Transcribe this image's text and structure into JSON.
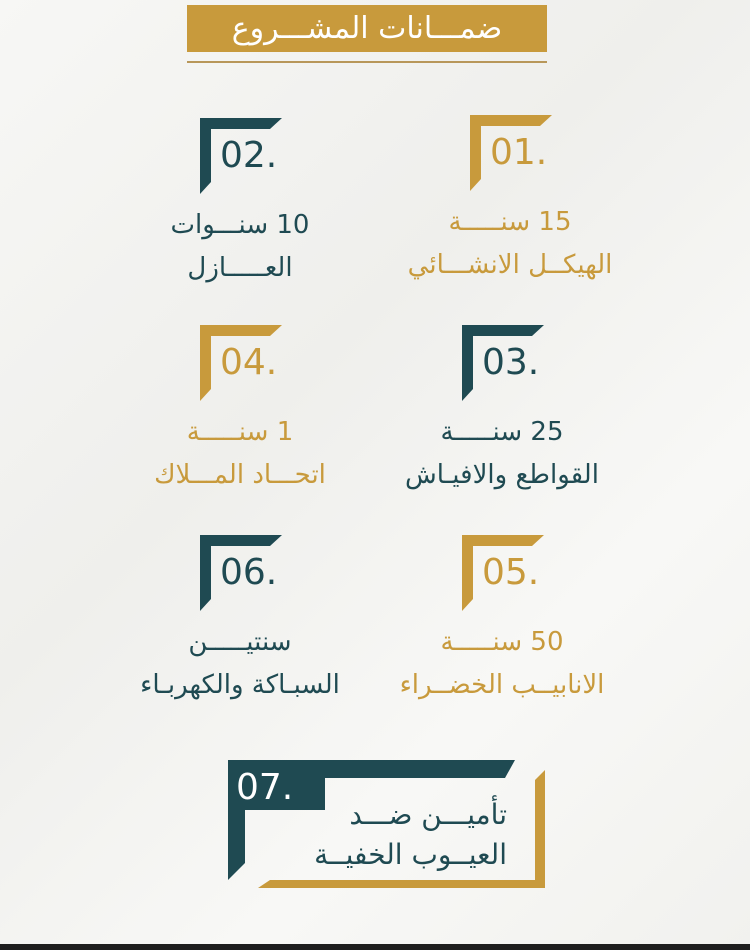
{
  "title": "ضمـــانات المشـــروع",
  "colors": {
    "gold": "#c89a3c",
    "teal": "#1f4a52"
  },
  "cards": [
    {
      "number": "01.",
      "line1": "15 سنـــــة",
      "line2": "الهيكــل الانشـــائي",
      "color": "gold"
    },
    {
      "number": "02.",
      "line1": "10 سنـــوات",
      "line2": "العـــــازل",
      "color": "teal"
    },
    {
      "number": "03.",
      "line1": "25 سنـــــة",
      "line2": "القواطع والافيـاش",
      "color": "teal"
    },
    {
      "number": "04.",
      "line1": "1 سنـــــة",
      "line2": "اتحـــاد المـــلاك",
      "color": "gold"
    },
    {
      "number": "05.",
      "line1": "50 سنـــــة",
      "line2": "الانابيــب الخضــراء",
      "color": "gold"
    },
    {
      "number": "06.",
      "line1": "سنتيـــــن",
      "line2": "السبـاكة والكهربـاء",
      "color": "teal"
    }
  ],
  "featured": {
    "number": "07.",
    "line1": "تأميـــن ضـــد",
    "line2": "العيــوب الخفيــة"
  }
}
